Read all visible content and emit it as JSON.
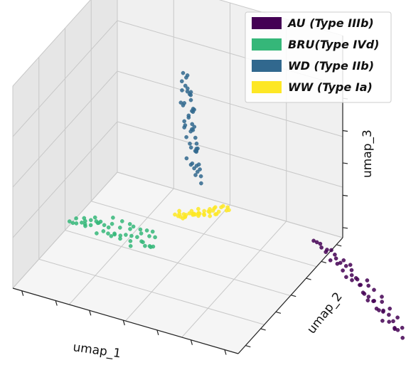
{
  "chart_data": {
    "type": "scatter",
    "projection": "3d",
    "title": "",
    "xlabel": "umap_1",
    "ylabel": "umap_2",
    "zlabel": "umap_3",
    "grid": true,
    "tick_labels_shown": false,
    "legend_placement": "top-right",
    "series": [
      {
        "name": "AU (Type IIIb)",
        "color": "#440154",
        "x": [
          -7.2,
          -7.0,
          -6.9,
          -6.85,
          -6.8,
          -6.7,
          -6.6,
          -6.6,
          -6.5,
          -6.4,
          -6.4,
          -6.3,
          -6.2,
          -6.2,
          -6.1,
          -6.0,
          -6.0,
          -5.9,
          -5.8,
          -5.75,
          -5.7,
          -5.6,
          -5.55,
          -5.5,
          -5.4,
          -5.35,
          -5.3,
          -5.2,
          -5.1,
          -5.0,
          -4.95,
          -4.9,
          -4.8,
          -4.7,
          -4.65,
          -4.6,
          -4.5,
          -4.4,
          -4.35,
          -4.3,
          -4.2,
          -4.1,
          -4.0,
          -3.9,
          -3.8,
          -3.7,
          -3.6,
          -3.5,
          -3.4,
          -3.3
        ],
        "y": [
          0.2,
          0.6,
          0.1,
          0.5,
          0.3,
          0.8,
          0.2,
          0.6,
          0.4,
          0.0,
          0.7,
          0.3,
          0.5,
          0.1,
          0.6,
          0.3,
          0.8,
          0.2,
          0.5,
          0.0,
          0.7,
          0.4,
          0.1,
          0.6,
          0.3,
          0.8,
          0.2,
          0.5,
          0.4,
          0.1,
          0.6,
          0.3,
          0.5,
          0.2,
          0.7,
          0.4,
          0.3,
          0.6,
          0.1,
          0.5,
          0.3,
          0.4,
          0.2,
          0.5,
          0.3,
          0.4,
          0.2,
          0.3,
          0.2,
          0.1
        ],
        "z": [
          3.0,
          3.2,
          3.4,
          3.1,
          3.3,
          3.5,
          3.6,
          3.4,
          3.8,
          3.7,
          3.9,
          4.0,
          3.8,
          4.1,
          4.2,
          4.0,
          4.3,
          4.4,
          4.2,
          4.5,
          4.6,
          4.4,
          4.7,
          4.8,
          4.6,
          4.9,
          5.0,
          4.8,
          5.1,
          5.2,
          5.0,
          5.3,
          5.4,
          5.2,
          5.5,
          5.6,
          5.4,
          5.7,
          5.8,
          5.6,
          5.9,
          6.0,
          5.8,
          6.1,
          6.2,
          6.0,
          6.3,
          6.4,
          6.5,
          6.6
        ]
      },
      {
        "name": "BRU(Type IVd)",
        "color": "#35b779",
        "x": [
          6.0,
          6.1,
          6.2,
          6.3,
          6.2,
          6.4,
          6.5,
          6.6,
          6.5,
          6.7,
          6.8,
          6.9,
          6.8,
          7.0,
          7.1,
          7.2,
          7.1,
          7.3,
          7.4,
          7.5,
          7.4,
          7.6,
          7.7,
          7.8,
          7.7,
          7.9,
          8.0,
          8.1,
          8.0,
          8.2,
          8.3,
          8.4,
          8.3,
          8.5,
          8.6,
          8.7,
          8.6,
          8.8,
          8.9,
          9.0,
          8.9,
          9.1,
          9.2,
          9.3,
          9.2,
          9.4,
          9.5,
          9.6,
          9.7,
          9.8
        ],
        "y": [
          4.8,
          5.2,
          5.0,
          5.4,
          4.9,
          5.3,
          5.1,
          5.5,
          4.9,
          5.2,
          5.0,
          5.6,
          5.3,
          4.8,
          5.1,
          5.5,
          5.0,
          5.4,
          5.2,
          4.9,
          5.6,
          5.1,
          5.3,
          5.0,
          5.5,
          5.2,
          4.8,
          5.4,
          5.1,
          5.7,
          5.0,
          5.3,
          5.5,
          4.9,
          5.2,
          5.6,
          5.0,
          5.4,
          5.1,
          5.3,
          5.5,
          5.0,
          5.2,
          5.4,
          5.1,
          5.3,
          5.0,
          5.2,
          5.1,
          5.0
        ],
        "z": [
          0.6,
          0.8,
          0.4,
          0.9,
          0.5,
          0.7,
          0.3,
          0.8,
          0.6,
          0.4,
          0.7,
          0.5,
          0.9,
          0.3,
          0.6,
          0.8,
          0.4,
          0.7,
          0.5,
          0.6,
          0.8,
          0.3,
          0.7,
          0.5,
          0.9,
          0.4,
          0.6,
          0.7,
          0.3,
          0.8,
          0.5,
          0.6,
          0.4,
          0.9,
          0.7,
          0.5,
          0.3,
          0.6,
          0.8,
          0.4,
          0.7,
          0.5,
          0.6,
          0.3,
          0.8,
          0.4,
          0.5,
          0.6,
          0.4,
          0.5
        ]
      },
      {
        "name": "WD (Type IIb)",
        "color": "#31688e",
        "x": [
          3.5,
          3.6,
          3.7,
          3.6,
          3.8,
          3.7,
          3.9,
          3.8,
          4.0,
          3.9,
          3.6,
          3.8,
          4.1,
          3.7,
          3.9,
          4.0,
          3.8,
          4.2,
          3.9,
          4.1,
          3.7,
          4.0,
          3.8,
          4.2,
          4.0,
          3.9,
          4.3,
          4.1,
          3.8,
          4.0,
          4.2,
          3.9,
          4.1,
          4.3,
          4.0,
          4.2,
          3.9,
          4.1,
          4.4,
          4.2,
          4.0,
          4.3,
          4.1,
          4.2,
          4.0,
          4.3,
          4.1,
          4.2,
          4.4,
          4.3
        ],
        "y": [
          4.0,
          4.2,
          3.9,
          4.1,
          4.3,
          4.0,
          4.2,
          3.8,
          4.1,
          4.4,
          4.0,
          4.2,
          3.9,
          4.1,
          4.3,
          4.0,
          4.2,
          4.1,
          3.9,
          4.3,
          4.0,
          4.2,
          4.1,
          3.9,
          4.3,
          4.0,
          4.2,
          4.1,
          4.0,
          4.3,
          3.9,
          4.2,
          4.1,
          4.0,
          4.2,
          3.9,
          4.1,
          4.3,
          4.0,
          4.2,
          4.1,
          3.9,
          4.2,
          4.0,
          4.1,
          4.3,
          4.0,
          4.2,
          4.1,
          4.0
        ],
        "z": [
          5.0,
          5.2,
          5.4,
          5.6,
          5.3,
          5.8,
          5.5,
          6.0,
          5.7,
          6.2,
          5.9,
          6.4,
          6.1,
          6.6,
          6.3,
          6.8,
          6.5,
          7.0,
          6.7,
          7.2,
          6.9,
          7.4,
          7.1,
          7.6,
          7.3,
          7.8,
          7.5,
          8.0,
          7.7,
          8.2,
          7.9,
          8.4,
          8.1,
          8.6,
          8.3,
          8.8,
          8.5,
          9.0,
          8.7,
          9.2,
          8.9,
          9.4,
          9.1,
          9.6,
          9.3,
          9.8,
          9.5,
          10.0,
          9.7,
          10.2
        ]
      },
      {
        "name": "WW (Type Ia)",
        "color": "#fde725",
        "x": [
          1.8,
          2.0,
          2.1,
          2.3,
          2.2,
          2.4,
          2.5,
          2.6,
          2.7,
          2.8,
          2.9,
          3.0,
          3.1,
          3.2,
          3.3,
          3.4,
          3.5,
          3.6,
          3.7,
          3.8,
          2.0,
          2.3,
          2.6,
          2.9,
          3.2,
          3.5,
          3.8,
          4.0,
          4.1,
          4.2,
          2.5,
          2.8,
          3.1,
          3.4,
          3.7,
          3.9,
          4.0,
          4.1,
          3.6,
          3.3
        ],
        "y": [
          3.0,
          3.2,
          2.9,
          3.1,
          3.3,
          3.0,
          3.2,
          2.9,
          3.1,
          3.3,
          3.0,
          3.2,
          2.9,
          3.1,
          3.3,
          3.0,
          3.2,
          3.1,
          2.9,
          3.2,
          3.3,
          2.9,
          3.2,
          3.0,
          3.1,
          3.3,
          2.9,
          3.1,
          3.2,
          3.0,
          3.1,
          3.2,
          3.0,
          3.1,
          2.9,
          3.2,
          3.0,
          3.1,
          3.3,
          3.0
        ],
        "z": [
          4.8,
          4.6,
          4.9,
          4.5,
          4.7,
          4.4,
          4.6,
          4.3,
          4.5,
          4.2,
          4.4,
          4.1,
          4.3,
          4.0,
          4.2,
          4.1,
          3.9,
          4.0,
          3.9,
          3.8,
          4.7,
          4.5,
          4.4,
          4.2,
          4.1,
          3.9,
          3.8,
          3.7,
          3.9,
          3.8,
          4.6,
          4.3,
          4.2,
          4.0,
          3.9,
          3.8,
          3.9,
          3.7,
          4.0,
          4.1
        ]
      }
    ]
  }
}
